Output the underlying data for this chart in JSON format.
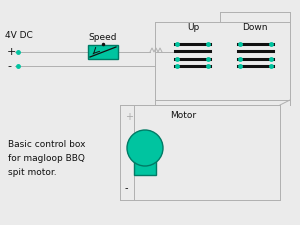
{
  "bg_color": "#ebebeb",
  "line_color": "#b0b0b0",
  "teal_color": "#00c4a0",
  "dark_teal": "#007a65",
  "black": "#111111",
  "label_4vdc": "4V DC",
  "label_speed": "Speed",
  "label_up": "Up",
  "label_down": "Down",
  "label_motor": "Motor",
  "label_plus": "+",
  "label_minus": "-",
  "title_text": "Basic control box\nfor magloop BBQ\nspit motor."
}
